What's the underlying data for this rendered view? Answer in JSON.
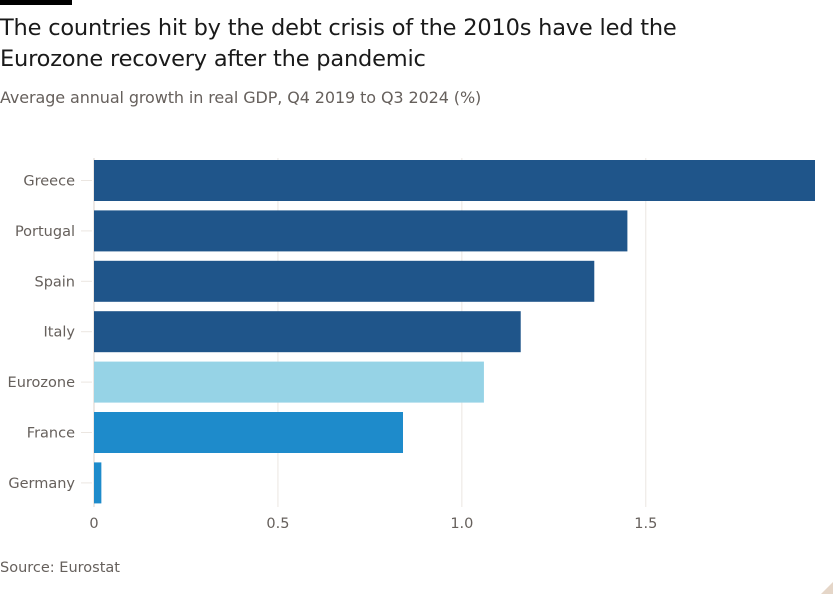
{
  "header": {
    "title": "The countries hit by the debt crisis of the 2010s have led the Eurozone recovery after the pandemic",
    "subtitle": "Average annual growth in real GDP, Q4 2019 to Q3 2024 (%)"
  },
  "footer": {
    "source": "Source: Eurostat"
  },
  "colors": {
    "debt_crisis": "#1f558a",
    "eurozone": "#96d3e6",
    "other": "#1e8bcb",
    "grid": "#ebe6e1",
    "tick": "#66605c"
  },
  "chart_data": {
    "type": "bar",
    "orientation": "horizontal",
    "title": "The countries hit by the debt crisis of the 2010s have led the Eurozone recovery after the pandemic",
    "subtitle": "Average annual growth in real GDP, Q4 2019 to Q3 2024 (%)",
    "xlabel": "",
    "ylabel": "",
    "categories": [
      "Greece",
      "Portugal",
      "Spain",
      "Italy",
      "Eurozone",
      "France",
      "Germany"
    ],
    "values": [
      1.96,
      1.45,
      1.36,
      1.16,
      1.06,
      0.84,
      0.02
    ],
    "bar_groups": [
      "debt_crisis",
      "debt_crisis",
      "debt_crisis",
      "debt_crisis",
      "eurozone",
      "other",
      "other"
    ],
    "xlim": [
      0,
      1.96
    ],
    "xticks": [
      0,
      0.5,
      1.0,
      1.5
    ],
    "xtick_labels": [
      "0",
      "0.5",
      "1.0",
      "1.5"
    ],
    "grid": "vertical",
    "legend": "none",
    "source": "Source: Eurostat"
  }
}
